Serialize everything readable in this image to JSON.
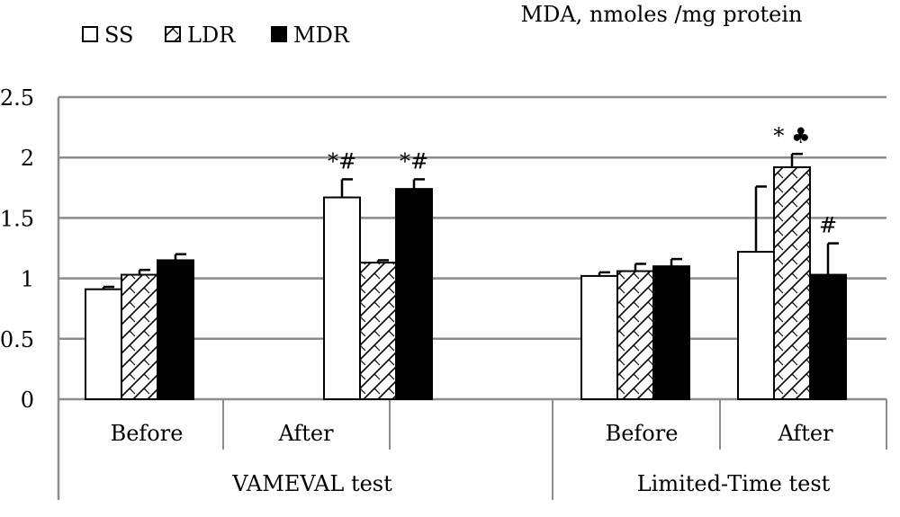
{
  "chart_data": {
    "type": "bar",
    "title": "MDA, nmoles /mg protein",
    "ylim": [
      0,
      2.5
    ],
    "yticks": [
      "0",
      "0.5",
      "1",
      "1.5",
      "2",
      "2.5"
    ],
    "grid": true,
    "legend_position": "top-left",
    "series": [
      {
        "name": "SS",
        "fill": "white",
        "values": [
          0.91,
          1.67,
          1.02,
          1.22
        ],
        "errors": [
          0.02,
          0.15,
          0.03,
          0.54
        ]
      },
      {
        "name": "LDR",
        "fill": "hatch",
        "values": [
          1.03,
          1.13,
          1.06,
          1.92
        ],
        "errors": [
          0.04,
          0.02,
          0.06,
          0.11
        ]
      },
      {
        "name": "MDR",
        "fill": "black",
        "values": [
          1.15,
          1.74,
          1.1,
          1.03
        ],
        "errors": [
          0.05,
          0.08,
          0.06,
          0.26
        ]
      }
    ],
    "categories": [
      "Before",
      "After",
      "Before",
      "After"
    ],
    "groups": [
      "VAMEVAL test",
      "Limited-Time test"
    ],
    "annotations": [
      {
        "category": 1,
        "series": 0,
        "text": "*#"
      },
      {
        "category": 1,
        "series": 2,
        "text": "*#"
      },
      {
        "category": 3,
        "series": 1,
        "text": "* ♣"
      },
      {
        "category": 3,
        "series": 2,
        "text": "#"
      }
    ]
  }
}
